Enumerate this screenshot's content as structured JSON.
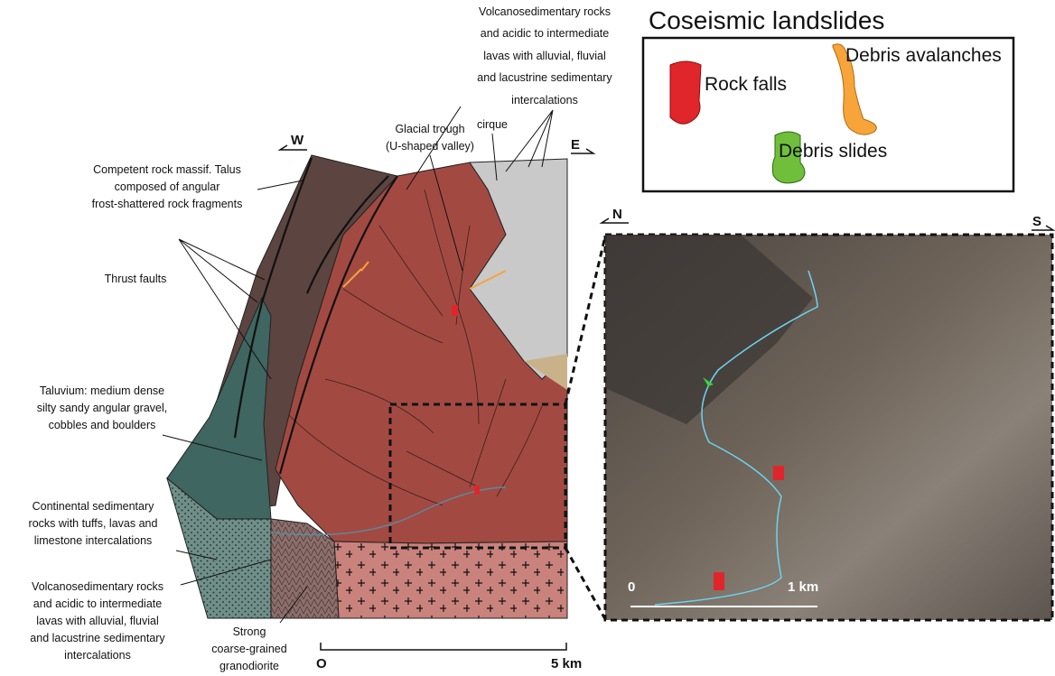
{
  "legend": {
    "title": "Coseismic landslides",
    "items": [
      "Rock falls",
      "Debris avalanches",
      "Debris slides"
    ]
  },
  "orientation": {
    "map_west": "W",
    "map_east": "E",
    "photo_north": "N",
    "photo_south": "S"
  },
  "annotations": {
    "volcano_top": [
      "Volcanosedimentary rocks",
      "and acidic to intermediate",
      "lavas with alluvial, fluvial",
      "and lacustrine sedimentary",
      "intercalations"
    ],
    "cirque": "cirque",
    "glacial_trough": [
      "Glacial trough",
      "(U-shaped valley)"
    ],
    "competent_rock": [
      "Competent rock massif. Talus",
      "composed of angular",
      "frost-shattered rock fragments"
    ],
    "thrust_faults": "Thrust faults",
    "taluvium": [
      "Taluvium: medium dense",
      "silty sandy angular gravel,",
      "cobbles and boulders"
    ],
    "continental": [
      "Continental sedimentary",
      "rocks with tuffs, lavas and",
      "limestone intercalations"
    ],
    "volcano_bottom": [
      "Volcanosedimentary rocks",
      "and acidic to intermediate",
      "lavas with alluvial, fluvial",
      "and lacustrine sedimentary",
      "intercalations"
    ],
    "granodiorite": [
      "Strong",
      "coarse-grained",
      "granodiorite"
    ]
  },
  "scale_bars": {
    "map": [
      "O",
      "5 km"
    ],
    "photo": [
      "0",
      "1 km"
    ]
  }
}
